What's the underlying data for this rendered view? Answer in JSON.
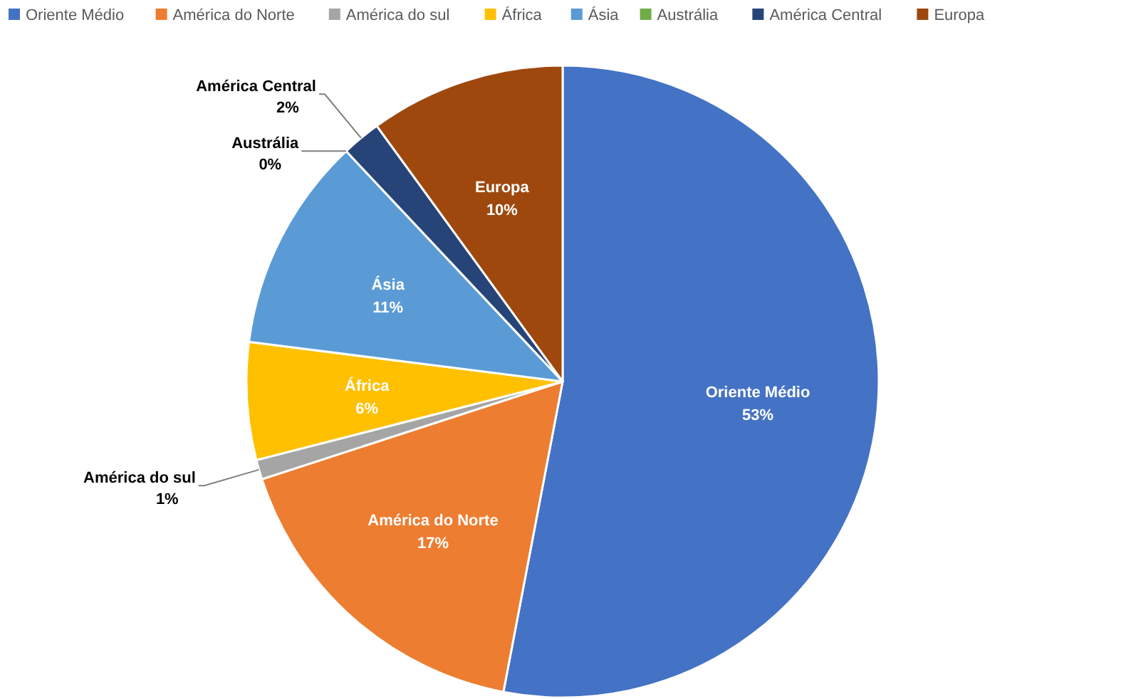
{
  "chart_data": {
    "type": "pie",
    "categories": [
      "Oriente Médio",
      "América do Norte",
      "América do sul",
      "África",
      "Ásia",
      "Austrália",
      "América Central",
      "Europa"
    ],
    "values": [
      53,
      17,
      1,
      6,
      11,
      0,
      2,
      10
    ],
    "value_labels": [
      "53%",
      "17%",
      "1%",
      "6%",
      "11%",
      "0%",
      "2%",
      "10%"
    ],
    "colors": [
      "#4472c4",
      "#ed7d31",
      "#a5a5a5",
      "#ffc000",
      "#5b9bd5",
      "#70ad47",
      "#264478",
      "#9e480e"
    ],
    "legend": "top"
  }
}
